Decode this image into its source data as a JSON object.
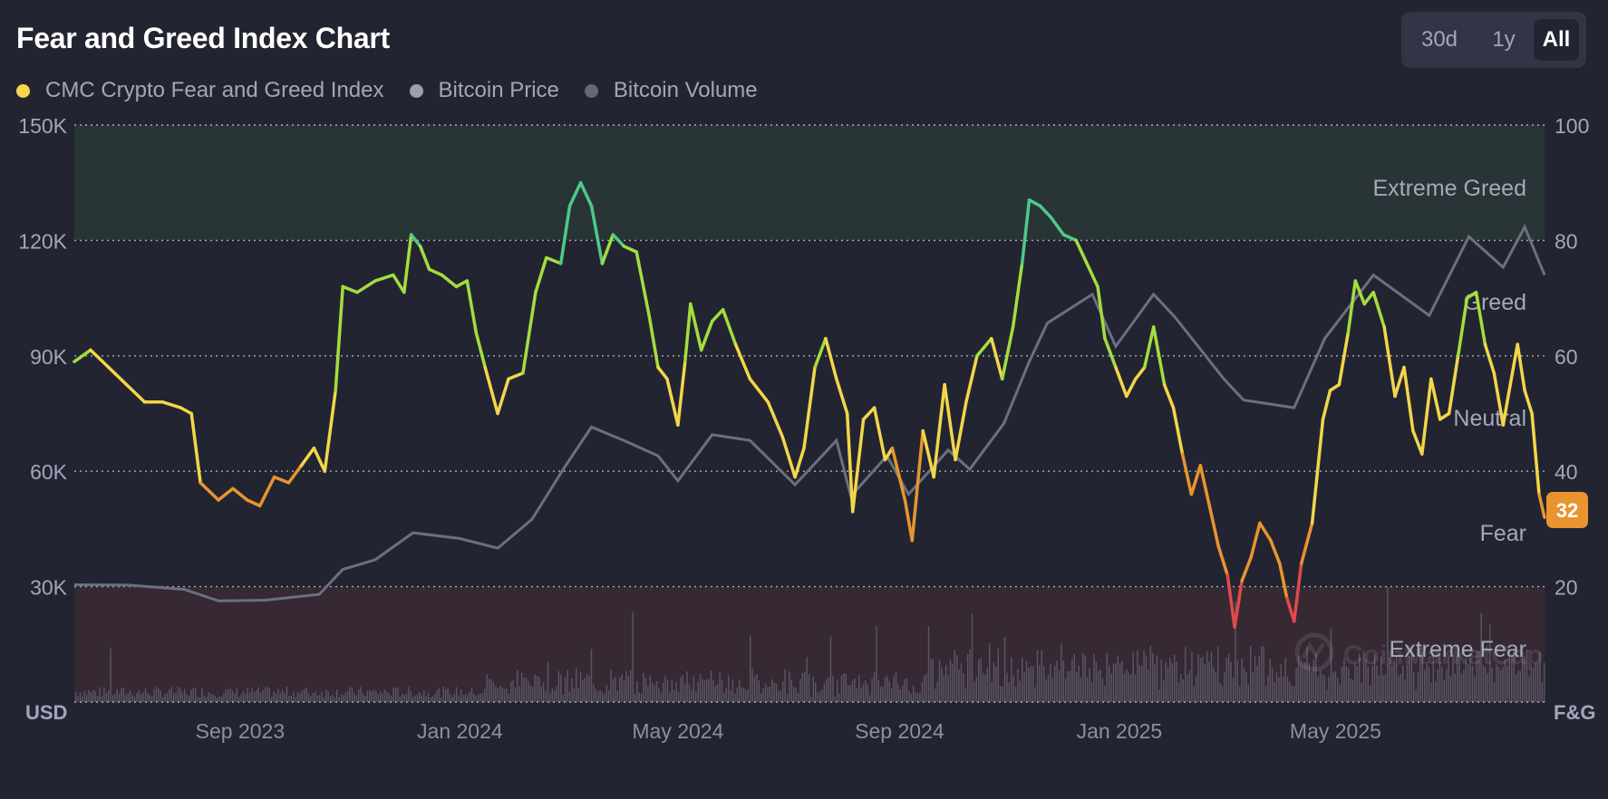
{
  "header": {
    "title": "Fear and Greed Index Chart"
  },
  "range_switch": {
    "options": [
      "30d",
      "1y",
      "All"
    ],
    "active": "All"
  },
  "legend": [
    {
      "label": "CMC Crypto Fear and Greed Index",
      "color": "#f5d54b"
    },
    {
      "label": "Bitcoin Price",
      "color": "#9aa0b4"
    },
    {
      "label": "Bitcoin Volume",
      "color": "#646878"
    }
  ],
  "current_value_badge": {
    "value": "32",
    "color": "#e8952f"
  },
  "colors": {
    "background": "#222531",
    "extreme_greed_band": "#283436",
    "extreme_fear_band": "#362933",
    "price_line": "#6b7080",
    "volume_bars": "#5a5666",
    "grid": "#d6d8e0",
    "fg_extreme_fear": "#e04a4a",
    "fg_fear": "#e8952f",
    "fg_neutral": "#f3d64a",
    "fg_greed": "#a3dd3f",
    "fg_extreme_greed": "#4fc987"
  },
  "chart_data": {
    "type": "line",
    "title": "Fear and Greed Index Chart",
    "x_range": [
      "2023-06-01",
      "2025-08-25"
    ],
    "x_ticks": [
      {
        "label": "Sep 2023",
        "date": "2023-09-01"
      },
      {
        "label": "Jan 2024",
        "date": "2024-01-01"
      },
      {
        "label": "May 2024",
        "date": "2024-05-01"
      },
      {
        "label": "Sep 2024",
        "date": "2024-09-01"
      },
      {
        "label": "Jan 2025",
        "date": "2025-01-01"
      },
      {
        "label": "May 2025",
        "date": "2025-05-01"
      }
    ],
    "y_left": {
      "unit_label": "USD",
      "range": [
        0,
        150000
      ],
      "ticks": [
        {
          "value": 30000,
          "label": "30K"
        },
        {
          "value": 60000,
          "label": "60K"
        },
        {
          "value": 90000,
          "label": "90K"
        },
        {
          "value": 120000,
          "label": "120K"
        },
        {
          "value": 150000,
          "label": "150K"
        }
      ]
    },
    "y_right": {
      "unit_label": "F&G",
      "range": [
        0,
        100
      ],
      "ticks": [
        {
          "value": 20,
          "label": "20"
        },
        {
          "value": 40,
          "label": "40"
        },
        {
          "value": 60,
          "label": "60"
        },
        {
          "value": 80,
          "label": "80"
        },
        {
          "value": 100,
          "label": "100"
        }
      ]
    },
    "zones": [
      {
        "label": "Extreme Greed",
        "min": 80,
        "max": 100
      },
      {
        "label": "Greed",
        "min": 60,
        "max": 80
      },
      {
        "label": "Neutral",
        "min": 40,
        "max": 60
      },
      {
        "label": "Fear",
        "min": 20,
        "max": 40
      },
      {
        "label": "Extreme Fear",
        "min": 0,
        "max": 20
      }
    ],
    "series": [
      {
        "name": "CMC Crypto Fear and Greed Index",
        "axis": "right",
        "points": [
          [
            "2023-06-01",
            59
          ],
          [
            "2023-06-10",
            61
          ],
          [
            "2023-06-20",
            58
          ],
          [
            "2023-06-30",
            55
          ],
          [
            "2023-07-10",
            52
          ],
          [
            "2023-07-20",
            52
          ],
          [
            "2023-07-30",
            51
          ],
          [
            "2023-08-05",
            50
          ],
          [
            "2023-08-10",
            38
          ],
          [
            "2023-08-20",
            35
          ],
          [
            "2023-08-28",
            37
          ],
          [
            "2023-09-05",
            35
          ],
          [
            "2023-09-12",
            34
          ],
          [
            "2023-09-20",
            39
          ],
          [
            "2023-09-28",
            38
          ],
          [
            "2023-10-05",
            41
          ],
          [
            "2023-10-12",
            44
          ],
          [
            "2023-10-18",
            40
          ],
          [
            "2023-10-24",
            54
          ],
          [
            "2023-10-28",
            72
          ],
          [
            "2023-11-05",
            71
          ],
          [
            "2023-11-15",
            73
          ],
          [
            "2023-11-25",
            74
          ],
          [
            "2023-12-01",
            71
          ],
          [
            "2023-12-05",
            81
          ],
          [
            "2023-12-10",
            79
          ],
          [
            "2023-12-15",
            75
          ],
          [
            "2023-12-22",
            74
          ],
          [
            "2023-12-30",
            72
          ],
          [
            "2024-01-05",
            73
          ],
          [
            "2024-01-10",
            64
          ],
          [
            "2024-01-15",
            58
          ],
          [
            "2024-01-22",
            50
          ],
          [
            "2024-01-28",
            56
          ],
          [
            "2024-02-05",
            57
          ],
          [
            "2024-02-12",
            71
          ],
          [
            "2024-02-18",
            77
          ],
          [
            "2024-02-26",
            76
          ],
          [
            "2024-03-02",
            86
          ],
          [
            "2024-03-08",
            90
          ],
          [
            "2024-03-14",
            86
          ],
          [
            "2024-03-20",
            76
          ],
          [
            "2024-03-26",
            81
          ],
          [
            "2024-04-01",
            79
          ],
          [
            "2024-04-08",
            78
          ],
          [
            "2024-04-15",
            67
          ],
          [
            "2024-04-20",
            58
          ],
          [
            "2024-04-25",
            56
          ],
          [
            "2024-05-01",
            48
          ],
          [
            "2024-05-05",
            59
          ],
          [
            "2024-05-08",
            69
          ],
          [
            "2024-05-14",
            61
          ],
          [
            "2024-05-20",
            66
          ],
          [
            "2024-05-26",
            68
          ],
          [
            "2024-06-02",
            62
          ],
          [
            "2024-06-10",
            56
          ],
          [
            "2024-06-20",
            52
          ],
          [
            "2024-06-28",
            46
          ],
          [
            "2024-07-05",
            39
          ],
          [
            "2024-07-10",
            44
          ],
          [
            "2024-07-16",
            58
          ],
          [
            "2024-07-22",
            63
          ],
          [
            "2024-07-28",
            56
          ],
          [
            "2024-08-03",
            50
          ],
          [
            "2024-08-06",
            33
          ],
          [
            "2024-08-12",
            49
          ],
          [
            "2024-08-18",
            51
          ],
          [
            "2024-08-24",
            42
          ],
          [
            "2024-08-28",
            44
          ],
          [
            "2024-09-04",
            35
          ],
          [
            "2024-09-08",
            28
          ],
          [
            "2024-09-14",
            47
          ],
          [
            "2024-09-20",
            39
          ],
          [
            "2024-09-26",
            55
          ],
          [
            "2024-10-02",
            42
          ],
          [
            "2024-10-08",
            52
          ],
          [
            "2024-10-14",
            60
          ],
          [
            "2024-10-22",
            63
          ],
          [
            "2024-10-28",
            56
          ],
          [
            "2024-11-03",
            65
          ],
          [
            "2024-11-08",
            76
          ],
          [
            "2024-11-12",
            87
          ],
          [
            "2024-11-18",
            86
          ],
          [
            "2024-11-24",
            84
          ],
          [
            "2024-12-01",
            81
          ],
          [
            "2024-12-08",
            80
          ],
          [
            "2024-12-14",
            76
          ],
          [
            "2024-12-20",
            72
          ],
          [
            "2024-12-24",
            63
          ],
          [
            "2024-12-30",
            58
          ],
          [
            "2025-01-05",
            53
          ],
          [
            "2025-01-10",
            56
          ],
          [
            "2025-01-15",
            58
          ],
          [
            "2025-01-20",
            65
          ],
          [
            "2025-01-26",
            55
          ],
          [
            "2025-01-31",
            51
          ],
          [
            "2025-02-05",
            43
          ],
          [
            "2025-02-10",
            36
          ],
          [
            "2025-02-15",
            41
          ],
          [
            "2025-02-20",
            34
          ],
          [
            "2025-02-25",
            27
          ],
          [
            "2025-03-02",
            22
          ],
          [
            "2025-03-06",
            13
          ],
          [
            "2025-03-10",
            21
          ],
          [
            "2025-03-15",
            25
          ],
          [
            "2025-03-20",
            31
          ],
          [
            "2025-03-26",
            28
          ],
          [
            "2025-03-31",
            24
          ],
          [
            "2025-04-04",
            18
          ],
          [
            "2025-04-08",
            14
          ],
          [
            "2025-04-12",
            24
          ],
          [
            "2025-04-18",
            31
          ],
          [
            "2025-04-24",
            49
          ],
          [
            "2025-04-28",
            54
          ],
          [
            "2025-05-03",
            55
          ],
          [
            "2025-05-08",
            64
          ],
          [
            "2025-05-12",
            73
          ],
          [
            "2025-05-17",
            69
          ],
          [
            "2025-05-22",
            71
          ],
          [
            "2025-05-28",
            65
          ],
          [
            "2025-06-03",
            53
          ],
          [
            "2025-06-08",
            58
          ],
          [
            "2025-06-13",
            47
          ],
          [
            "2025-06-18",
            43
          ],
          [
            "2025-06-23",
            56
          ],
          [
            "2025-06-28",
            49
          ],
          [
            "2025-07-03",
            50
          ],
          [
            "2025-07-08",
            60
          ],
          [
            "2025-07-13",
            70
          ],
          [
            "2025-07-18",
            71
          ],
          [
            "2025-07-23",
            62
          ],
          [
            "2025-07-28",
            57
          ],
          [
            "2025-08-02",
            48
          ],
          [
            "2025-08-06",
            55
          ],
          [
            "2025-08-10",
            62
          ],
          [
            "2025-08-14",
            54
          ],
          [
            "2025-08-18",
            50
          ],
          [
            "2025-08-22",
            36
          ],
          [
            "2025-08-25",
            32
          ]
        ]
      },
      {
        "name": "Bitcoin Price",
        "axis": "left",
        "points": [
          [
            "2023-06-01",
            30500
          ],
          [
            "2023-07-01",
            30400
          ],
          [
            "2023-08-01",
            29300
          ],
          [
            "2023-08-20",
            26300
          ],
          [
            "2023-09-15",
            26500
          ],
          [
            "2023-10-15",
            28000
          ],
          [
            "2023-10-28",
            34500
          ],
          [
            "2023-11-15",
            37000
          ],
          [
            "2023-12-06",
            44000
          ],
          [
            "2024-01-01",
            42500
          ],
          [
            "2024-01-22",
            40000
          ],
          [
            "2024-02-10",
            47500
          ],
          [
            "2024-02-28",
            61000
          ],
          [
            "2024-03-14",
            71500
          ],
          [
            "2024-04-01",
            68000
          ],
          [
            "2024-04-20",
            64000
          ],
          [
            "2024-05-01",
            57500
          ],
          [
            "2024-05-20",
            69500
          ],
          [
            "2024-06-10",
            68000
          ],
          [
            "2024-07-05",
            56500
          ],
          [
            "2024-07-28",
            68000
          ],
          [
            "2024-08-05",
            53500
          ],
          [
            "2024-08-25",
            64000
          ],
          [
            "2024-09-06",
            54000
          ],
          [
            "2024-09-28",
            65500
          ],
          [
            "2024-10-10",
            60500
          ],
          [
            "2024-10-29",
            72500
          ],
          [
            "2024-11-12",
            88500
          ],
          [
            "2024-11-22",
            98500
          ],
          [
            "2024-12-17",
            106000
          ],
          [
            "2024-12-30",
            92500
          ],
          [
            "2025-01-20",
            106000
          ],
          [
            "2025-02-01",
            100000
          ],
          [
            "2025-02-28",
            84000
          ],
          [
            "2025-03-11",
            78500
          ],
          [
            "2025-04-08",
            76500
          ],
          [
            "2025-04-25",
            94500
          ],
          [
            "2025-05-22",
            111000
          ],
          [
            "2025-06-22",
            100500
          ],
          [
            "2025-07-14",
            121000
          ],
          [
            "2025-08-02",
            113000
          ],
          [
            "2025-08-14",
            123500
          ],
          [
            "2025-08-25",
            111000
          ]
        ]
      }
    ]
  }
}
